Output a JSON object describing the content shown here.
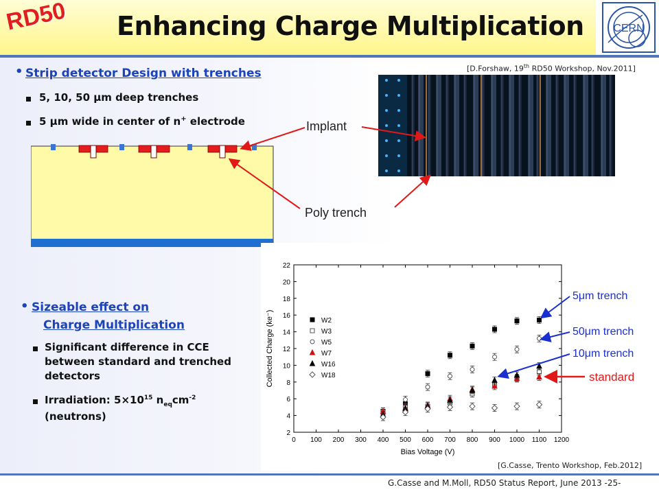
{
  "header": {
    "logo_text": "RD50",
    "title": "Enhancing Charge Multiplication",
    "cern_logo_text": "CERN"
  },
  "refs": {
    "top": [
      "[D.Forshaw, 19",
      "th",
      " RD50 Workshop, Nov.2011]"
    ],
    "bottom": "[G.Casse, Trento Workshop, Feb.2012]"
  },
  "section1": {
    "heading": "Strip detector Design with trenches",
    "items": [
      [
        "5, 10, 50 ",
        "μ",
        "m deep trenches"
      ],
      [
        "5 ",
        "μ",
        "m wide in center of n",
        "+",
        " electrode"
      ]
    ]
  },
  "annotations": {
    "implant": "Implant",
    "poly_trench": "Poly trench"
  },
  "section2": {
    "heading_line1": "Sizeable effect on",
    "heading_line2": "Charge Multiplication",
    "item1": "Significant difference in CCE between standard and trenched detectors",
    "item2_parts": [
      "Irradiation: 5×10",
      "15",
      " n",
      "eq",
      "cm",
      "-2"
    ],
    "item2_line2": "(neutrons)"
  },
  "chart_labels": {
    "trench5": [
      "5",
      "μ",
      "m trench"
    ],
    "trench50": [
      "50",
      "μ",
      "m trench"
    ],
    "trench10": [
      "10",
      "μ",
      "m trench"
    ],
    "standard": "standard"
  },
  "colors": {
    "accent_blue": "#1d43b8",
    "header_yellow": "#fff68a",
    "rule_blue": "#4f76b8",
    "annotation_red": "#e01818",
    "annotation_blue": "#1a2fd0"
  },
  "chart_data": {
    "type": "scatter",
    "xlabel": "Bias Voltage (V)",
    "ylabel": "Collected Charge (ke⁻)",
    "xlim": [
      0,
      1200
    ],
    "ylim": [
      2,
      22
    ],
    "xticks": [
      0,
      100,
      200,
      300,
      400,
      500,
      600,
      700,
      800,
      900,
      1000,
      1100,
      1200
    ],
    "yticks": [
      2,
      4,
      6,
      8,
      10,
      12,
      14,
      16,
      18,
      20,
      22
    ],
    "grid": false,
    "legend_position": "left",
    "series": [
      {
        "name": "W2",
        "marker": "square-filled",
        "color": "#000000",
        "x": [
          400,
          500,
          600,
          700,
          800,
          900,
          1000,
          1100
        ],
        "y": [
          4.5,
          5.4,
          9.0,
          11.2,
          12.3,
          14.3,
          15.3,
          15.4
        ]
      },
      {
        "name": "W3",
        "marker": "square-open",
        "color": "#555555",
        "x": [
          400,
          500,
          600,
          700,
          800,
          900,
          1000,
          1100
        ],
        "y": [
          4.3,
          5.0,
          5.1,
          5.5,
          6.6,
          7.7,
          8.5,
          9.2
        ]
      },
      {
        "name": "W5",
        "marker": "circle-open",
        "color": "#555555",
        "x": [
          400,
          500,
          600,
          700,
          800,
          900,
          1000,
          1100
        ],
        "y": [
          4.5,
          5.9,
          7.4,
          8.7,
          9.5,
          11.0,
          11.9,
          13.2
        ]
      },
      {
        "name": "W7",
        "marker": "triangle-filled",
        "color": "#d01010",
        "x": [
          400,
          500,
          600,
          700,
          800,
          900,
          1000,
          1100
        ],
        "y": [
          4.5,
          4.9,
          5.2,
          6.0,
          7.1,
          7.5,
          8.4,
          8.6
        ]
      },
      {
        "name": "W16",
        "marker": "triangle-filled",
        "color": "#000000",
        "x": [
          400,
          500,
          600,
          700,
          800,
          900,
          1000,
          1100
        ],
        "y": [
          4.1,
          4.8,
          5.1,
          5.8,
          7.0,
          8.2,
          8.8,
          9.9
        ]
      },
      {
        "name": "W18",
        "marker": "diamond-open",
        "color": "#555555",
        "x": [
          400,
          500,
          600,
          700,
          800,
          900,
          1000,
          1100
        ],
        "y": [
          3.8,
          4.4,
          4.8,
          5.0,
          5.1,
          4.9,
          5.1,
          5.3
        ]
      }
    ]
  },
  "footer": {
    "credit": "G.Casse and M.Moll, RD50 Status Report, June 2013",
    "page": "-25-"
  }
}
